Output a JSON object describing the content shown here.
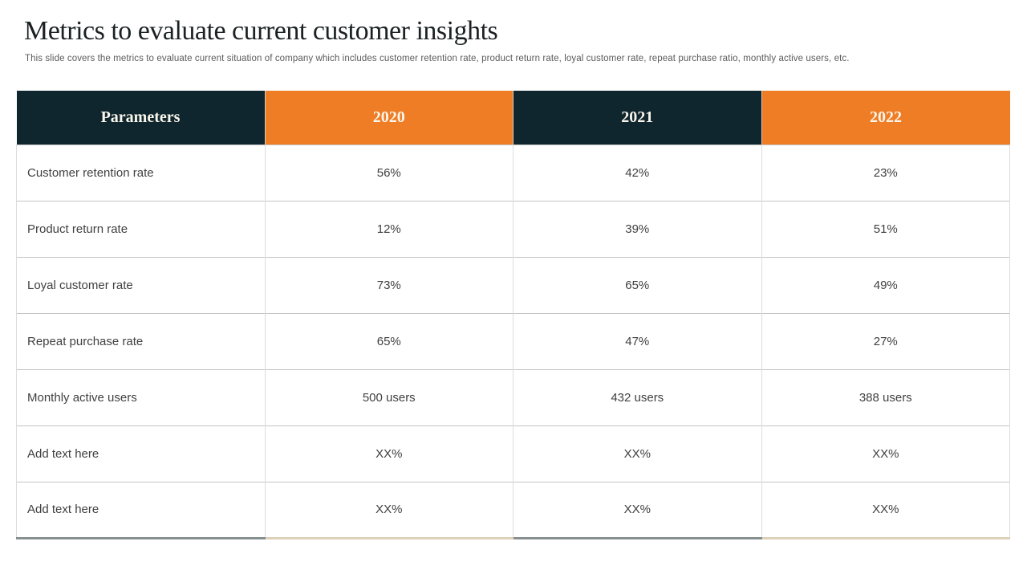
{
  "slide": {
    "title": "Metrics to evaluate current customer insights",
    "subtitle": "This slide covers the metrics to evaluate current situation of company which includes customer retention rate, product return rate, loyal customer rate, repeat purchase ratio, monthly active users, etc."
  },
  "table": {
    "columns": [
      "Parameters",
      "2020",
      "2021",
      "2022"
    ],
    "rows": [
      {
        "cells": [
          "Customer retention rate",
          "56%",
          "42%",
          "23%"
        ]
      },
      {
        "cells": [
          "Product return rate",
          "12%",
          "39%",
          "51%"
        ]
      },
      {
        "cells": [
          "Loyal customer rate",
          "73%",
          "65%",
          "49%"
        ]
      },
      {
        "cells": [
          "Repeat purchase rate",
          "65%",
          "47%",
          "27%"
        ]
      },
      {
        "cells": [
          "Monthly active users",
          "500 users",
          "432 users",
          "388 users"
        ]
      },
      {
        "cells": [
          "Add text here",
          "XX%",
          "XX%",
          "XX%"
        ]
      },
      {
        "cells": [
          "Add text here",
          "XX%",
          "XX%",
          "XX%"
        ]
      }
    ]
  },
  "colors": {
    "header_dark": "#0f262e",
    "header_orange": "#ef7d26",
    "header_text": "#fbf6ec",
    "body_text": "#404040",
    "row_divider": "#c4c4c4",
    "column_divider": "#dcdcdc",
    "bottom_accent_dark": "#87908f",
    "bottom_accent_cream": "#ddd0b8"
  }
}
